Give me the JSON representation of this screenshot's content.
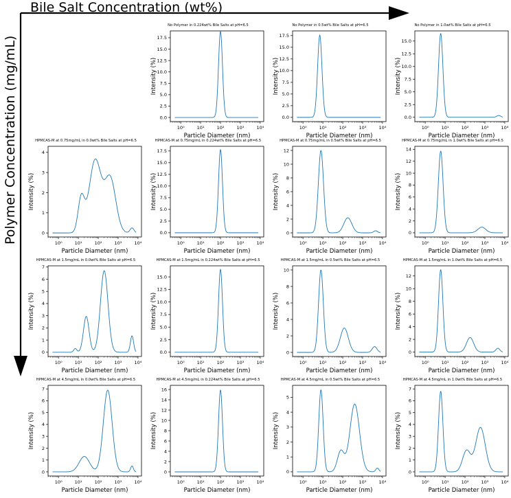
{
  "figure": {
    "x_label": "Bile Salt Concentration (wt%)",
    "y_label": "Polymer Concentration (mg/mL)"
  },
  "colors": {
    "line": "#1f77b4",
    "axes": "#000000"
  },
  "chart_data": [
    {
      "type": "line",
      "row": 0,
      "col": 1,
      "title": "No Polymer in 0.224wt% Bile Salts at pH=6.5",
      "xlabel": "Particle Diameter (nm)",
      "ylabel": "Intensity (%)",
      "xscale": "log",
      "xlim": [
        0.3,
        15000
      ],
      "ylim": [
        -0.9,
        19
      ],
      "yticks": [
        0.0,
        2.5,
        5.0,
        7.5,
        10.0,
        12.5,
        15.0,
        17.5
      ],
      "ytick_labels": [
        "0.0",
        "2.5",
        "5.0",
        "7.5",
        "10.0",
        "12.5",
        "15.0",
        "17.5"
      ],
      "xticks": [
        1,
        10,
        100,
        1000,
        10000
      ],
      "xtick_labels": [
        "10⁰",
        "10¹",
        "10²",
        "10³",
        "10⁴"
      ],
      "peaks": [
        {
          "center_nm": 100,
          "height": 18.9,
          "width_dec": 0.1
        }
      ]
    },
    {
      "type": "line",
      "row": 0,
      "col": 2,
      "title": "No Polymer in 0.5wt% Bile Salts at pH=6.5",
      "xlabel": "Particle Diameter (nm)",
      "ylabel": "Intensity (%)",
      "xscale": "log",
      "xlim": [
        0.3,
        15000
      ],
      "ylim": [
        -0.9,
        18.5
      ],
      "yticks": [
        0.0,
        2.5,
        5.0,
        7.5,
        10.0,
        12.5,
        15.0,
        17.5
      ],
      "ytick_labels": [
        "0.0",
        "2.5",
        "5.0",
        "7.5",
        "10.0",
        "12.5",
        "15.0",
        "17.5"
      ],
      "xticks": [
        1,
        10,
        100,
        1000,
        10000
      ],
      "xtick_labels": [
        "10⁰",
        "10¹",
        "10²",
        "10³",
        "10⁴"
      ],
      "peaks": [
        {
          "center_nm": 7,
          "height": 17.6,
          "width_dec": 0.11
        }
      ]
    },
    {
      "type": "line",
      "row": 0,
      "col": 3,
      "title": "No Polymer in 1.0wt% Bile Salts at pH=6.5",
      "xlabel": "Particle Diameter (nm)",
      "ylabel": "Intensity (%)",
      "xscale": "log",
      "xlim": [
        0.3,
        15000
      ],
      "ylim": [
        -0.85,
        17.0
      ],
      "yticks": [
        0.0,
        2.5,
        5.0,
        7.5,
        10.0,
        12.5,
        15.0
      ],
      "ytick_labels": [
        "0.0",
        "2.5",
        "5.0",
        "7.5",
        "10.0",
        "12.5",
        "15.0"
      ],
      "xticks": [
        1,
        10,
        100,
        1000,
        10000
      ],
      "xtick_labels": [
        "10⁰",
        "10¹",
        "10²",
        "10³",
        "10⁴"
      ],
      "peaks": [
        {
          "center_nm": 6,
          "height": 16.5,
          "width_dec": 0.11
        },
        {
          "center_nm": 5000,
          "height": 0.35,
          "width_dec": 0.1
        }
      ]
    },
    {
      "type": "line",
      "row": 1,
      "col": 0,
      "title": "HPMCAS-M at 0.75mg/mL in 0.0wt% Bile Salts at pH=6.5",
      "xlabel": "Particle Diameter (nm)",
      "ylabel": "Intensity (%)",
      "xscale": "log",
      "xlim": [
        0.3,
        15000
      ],
      "ylim": [
        -0.2,
        4.3
      ],
      "yticks": [
        0,
        1,
        2,
        3,
        4
      ],
      "ytick_labels": [
        "0",
        "1",
        "2",
        "3",
        "4"
      ],
      "xticks": [
        1,
        10,
        100,
        1000,
        10000
      ],
      "xtick_labels": [
        "10⁰",
        "10¹",
        "10²",
        "10³",
        "10⁴"
      ],
      "peaks": [
        {
          "center_nm": 14,
          "height": 1.7,
          "width_dec": 0.16
        },
        {
          "center_nm": 70,
          "height": 3.6,
          "width_dec": 0.3
        },
        {
          "center_nm": 400,
          "height": 2.7,
          "width_dec": 0.28
        },
        {
          "center_nm": 5000,
          "height": 0.25,
          "width_dec": 0.1
        }
      ]
    },
    {
      "type": "line",
      "row": 1,
      "col": 1,
      "title": "HPMCAS-M at 0.75mg/mL in 0.224wt% Bile Salts at pH=6.5",
      "xlabel": "Particle Diameter (nm)",
      "ylabel": "Intensity (%)",
      "xscale": "log",
      "xlim": [
        0.3,
        15000
      ],
      "ylim": [
        -0.9,
        18.5
      ],
      "yticks": [
        0.0,
        2.5,
        5.0,
        7.5,
        10.0,
        12.5,
        15.0,
        17.5
      ],
      "ytick_labels": [
        "0.0",
        "2.5",
        "5.0",
        "7.5",
        "10.0",
        "12.5",
        "15.0",
        "17.5"
      ],
      "xticks": [
        1,
        10,
        100,
        1000,
        10000
      ],
      "xtick_labels": [
        "10⁰",
        "10¹",
        "10²",
        "10³",
        "10⁴"
      ],
      "peaks": [
        {
          "center_nm": 100,
          "height": 17.8,
          "width_dec": 0.1
        }
      ]
    },
    {
      "type": "line",
      "row": 1,
      "col": 2,
      "title": "HPMCAS-M at 0.75mg/mL in 0.5wt% Bile Salts at pH=6.5",
      "xlabel": "Particle Diameter (nm)",
      "ylabel": "Intensity (%)",
      "xscale": "log",
      "xlim": [
        0.3,
        15000
      ],
      "ylim": [
        -0.6,
        12.6
      ],
      "yticks": [
        0,
        2,
        4,
        6,
        8,
        10,
        12
      ],
      "ytick_labels": [
        "0",
        "2",
        "4",
        "6",
        "8",
        "10",
        "12"
      ],
      "xticks": [
        1,
        10,
        100,
        1000,
        10000
      ],
      "xtick_labels": [
        "10⁰",
        "10¹",
        "10²",
        "10³",
        "10⁴"
      ],
      "peaks": [
        {
          "center_nm": 8,
          "height": 12.0,
          "width_dec": 0.13
        },
        {
          "center_nm": 180,
          "height": 2.2,
          "width_dec": 0.2
        },
        {
          "center_nm": 4500,
          "height": 0.3,
          "width_dec": 0.1
        }
      ]
    },
    {
      "type": "line",
      "row": 1,
      "col": 3,
      "title": "HPMCAS-M at 0.75mg/mL in 1.0wt% Bile Salts at pH=6.5",
      "xlabel": "Particle Diameter (nm)",
      "ylabel": "Intensity (%)",
      "xscale": "log",
      "xlim": [
        0.3,
        15000
      ],
      "ylim": [
        -0.7,
        14.5
      ],
      "yticks": [
        0,
        2,
        4,
        6,
        8,
        10,
        12,
        14
      ],
      "ytick_labels": [
        "0",
        "2",
        "4",
        "6",
        "8",
        "10",
        "12",
        "14"
      ],
      "xticks": [
        1,
        10,
        100,
        1000,
        10000
      ],
      "xtick_labels": [
        "10⁰",
        "10¹",
        "10²",
        "10³",
        "10⁴"
      ],
      "peaks": [
        {
          "center_nm": 6,
          "height": 13.7,
          "width_dec": 0.12
        },
        {
          "center_nm": 700,
          "height": 0.95,
          "width_dec": 0.2
        }
      ]
    },
    {
      "type": "line",
      "row": 2,
      "col": 0,
      "title": "HPMCAS-M at 1.5mg/mL in 0.0wt% Bile Salts at pH=6.5",
      "xlabel": "Particle Diameter (nm)",
      "ylabel": "Intensity (%)",
      "xscale": "log",
      "xlim": [
        0.3,
        15000
      ],
      "ylim": [
        -0.35,
        7.1
      ],
      "yticks": [
        0,
        1,
        2,
        3,
        4,
        5,
        6,
        7
      ],
      "ytick_labels": [
        "0",
        "1",
        "2",
        "3",
        "4",
        "5",
        "6",
        "7"
      ],
      "xticks": [
        1,
        10,
        100,
        1000,
        10000
      ],
      "xtick_labels": [
        "10⁰",
        "10¹",
        "10²",
        "10³",
        "10⁴"
      ],
      "peaks": [
        {
          "center_nm": 7,
          "height": 0.3,
          "width_dec": 0.08
        },
        {
          "center_nm": 25,
          "height": 2.95,
          "width_dec": 0.14
        },
        {
          "center_nm": 200,
          "height": 6.7,
          "width_dec": 0.19
        },
        {
          "center_nm": 5000,
          "height": 1.35,
          "width_dec": 0.08
        }
      ]
    },
    {
      "type": "line",
      "row": 2,
      "col": 1,
      "title": "HPMCAS-M at 1.5mg/mL in 0.224wt% Bile Salts at pH=6.5",
      "xlabel": "Particle Diameter (nm)",
      "ylabel": "Intensity (%)",
      "xscale": "log",
      "xlim": [
        0.3,
        15000
      ],
      "ylim": [
        -0.85,
        17.2
      ],
      "yticks": [
        0.0,
        2.5,
        5.0,
        7.5,
        10.0,
        12.5,
        15.0
      ],
      "ytick_labels": [
        "0.0",
        "2.5",
        "5.0",
        "7.5",
        "10.0",
        "12.5",
        "15.0"
      ],
      "xticks": [
        1,
        10,
        100,
        1000,
        10000
      ],
      "xtick_labels": [
        "10⁰",
        "10¹",
        "10²",
        "10³",
        "10⁴"
      ],
      "peaks": [
        {
          "center_nm": 100,
          "height": 16.5,
          "width_dec": 0.1
        }
      ]
    },
    {
      "type": "line",
      "row": 2,
      "col": 2,
      "title": "HPMCAS-M at 1.5mg/mL in 0.5wt% Bile Salts at pH=6.5",
      "xlabel": "Particle Diameter (nm)",
      "ylabel": "Intensity (%)",
      "xscale": "log",
      "xlim": [
        0.3,
        15000
      ],
      "ylim": [
        -0.5,
        10.5
      ],
      "yticks": [
        0,
        2,
        4,
        6,
        8,
        10
      ],
      "ytick_labels": [
        "0",
        "2",
        "4",
        "6",
        "8",
        "10"
      ],
      "xticks": [
        1,
        10,
        100,
        1000,
        10000
      ],
      "xtick_labels": [
        "10⁰",
        "10¹",
        "10²",
        "10³",
        "10⁴"
      ],
      "peaks": [
        {
          "center_nm": 8,
          "height": 10.0,
          "width_dec": 0.12
        },
        {
          "center_nm": 120,
          "height": 2.95,
          "width_dec": 0.2
        },
        {
          "center_nm": 4000,
          "height": 0.7,
          "width_dec": 0.12
        }
      ]
    },
    {
      "type": "line",
      "row": 2,
      "col": 3,
      "title": "HPMCAS-M at 1.5mg/mL in 1.0wt% Bile Salts at pH=6.5",
      "xlabel": "Particle Diameter (nm)",
      "ylabel": "Intensity (%)",
      "xscale": "log",
      "xlim": [
        0.3,
        15000
      ],
      "ylim": [
        -0.7,
        13.6
      ],
      "yticks": [
        0,
        2,
        4,
        6,
        8,
        10,
        12
      ],
      "ytick_labels": [
        "0",
        "2",
        "4",
        "6",
        "8",
        "10",
        "12"
      ],
      "xticks": [
        1,
        10,
        100,
        1000,
        10000
      ],
      "xtick_labels": [
        "10⁰",
        "10¹",
        "10²",
        "10³",
        "10⁴"
      ],
      "peaks": [
        {
          "center_nm": 6,
          "height": 13.0,
          "width_dec": 0.11
        },
        {
          "center_nm": 180,
          "height": 2.3,
          "width_dec": 0.18
        },
        {
          "center_nm": 4500,
          "height": 0.6,
          "width_dec": 0.1
        }
      ]
    },
    {
      "type": "line",
      "row": 3,
      "col": 0,
      "title": "HPMCAS-M at 4.5mg/mL in 0.0wt% Bile Salts at pH=6.5",
      "xlabel": "Particle Diameter (nm)",
      "ylabel": "Intensity (%)",
      "xscale": "log",
      "xlim": [
        0.3,
        15000
      ],
      "ylim": [
        -0.35,
        7.3
      ],
      "yticks": [
        0,
        1,
        2,
        3,
        4,
        5,
        6,
        7
      ],
      "ytick_labels": [
        "0",
        "1",
        "2",
        "3",
        "4",
        "5",
        "6",
        "7"
      ],
      "xticks": [
        1,
        10,
        100,
        1000,
        10000
      ],
      "xtick_labels": [
        "10⁰",
        "10¹",
        "10²",
        "10³",
        "10⁴"
      ],
      "peaks": [
        {
          "center_nm": 20,
          "height": 1.3,
          "width_dec": 0.26
        },
        {
          "center_nm": 300,
          "height": 6.9,
          "width_dec": 0.22
        },
        {
          "center_nm": 5000,
          "height": 0.5,
          "width_dec": 0.07
        }
      ]
    },
    {
      "type": "line",
      "row": 3,
      "col": 1,
      "title": "HPMCAS-M at 4.5mg/mL in 0.224wt% Bile Salts at pH=6.5",
      "xlabel": "Particle Diameter (nm)",
      "ylabel": "Intensity (%)",
      "xscale": "log",
      "xlim": [
        0.3,
        15000
      ],
      "ylim": [
        -0.8,
        16.8
      ],
      "yticks": [
        0,
        2,
        4,
        6,
        8,
        10,
        12,
        14,
        16
      ],
      "ytick_labels": [
        "0",
        "2",
        "4",
        "6",
        "8",
        "10",
        "12",
        "14",
        "16"
      ],
      "xticks": [
        1,
        10,
        100,
        1000,
        10000
      ],
      "xtick_labels": [
        "10⁰",
        "10¹",
        "10²",
        "10³",
        "10⁴"
      ],
      "peaks": [
        {
          "center_nm": 100,
          "height": 15.9,
          "width_dec": 0.1
        }
      ]
    },
    {
      "type": "line",
      "row": 3,
      "col": 2,
      "title": "HPMCAS-M at 4.5mg/mL in 0.5wt% Bile Salts at pH=6.5",
      "xlabel": "Particle Diameter (nm)",
      "ylabel": "Intensity (%)",
      "xscale": "log",
      "xlim": [
        0.3,
        15000
      ],
      "ylim": [
        -0.28,
        5.8
      ],
      "yticks": [
        0,
        1,
        2,
        3,
        4,
        5
      ],
      "ytick_labels": [
        "0",
        "1",
        "2",
        "3",
        "4",
        "5"
      ],
      "xticks": [
        1,
        10,
        100,
        1000,
        10000
      ],
      "xtick_labels": [
        "10⁰",
        "10¹",
        "10²",
        "10³",
        "10⁴"
      ],
      "peaks": [
        {
          "center_nm": 8,
          "height": 5.5,
          "width_dec": 0.11
        },
        {
          "center_nm": 80,
          "height": 1.4,
          "width_dec": 0.17
        },
        {
          "center_nm": 400,
          "height": 4.55,
          "width_dec": 0.24
        },
        {
          "center_nm": 5500,
          "height": 0.25,
          "width_dec": 0.08
        }
      ]
    },
    {
      "type": "line",
      "row": 3,
      "col": 3,
      "title": "HPMCAS-M at 4.5mg/mL in 1.0wt% Bile Salts at pH=6.5",
      "xlabel": "Particle Diameter (nm)",
      "ylabel": "Intensity (%)",
      "xscale": "log",
      "xlim": [
        0.3,
        15000
      ],
      "ylim": [
        -0.35,
        7.3
      ],
      "yticks": [
        0,
        1,
        2,
        3,
        4,
        5,
        6,
        7
      ],
      "ytick_labels": [
        "0",
        "1",
        "2",
        "3",
        "4",
        "5",
        "6",
        "7"
      ],
      "xticks": [
        1,
        10,
        100,
        1000,
        10000
      ],
      "xtick_labels": [
        "10⁰",
        "10¹",
        "10²",
        "10³",
        "10⁴"
      ],
      "peaks": [
        {
          "center_nm": 6,
          "height": 6.8,
          "width_dec": 0.11
        },
        {
          "center_nm": 120,
          "height": 1.8,
          "width_dec": 0.2
        },
        {
          "center_nm": 600,
          "height": 3.75,
          "width_dec": 0.24
        }
      ]
    }
  ]
}
